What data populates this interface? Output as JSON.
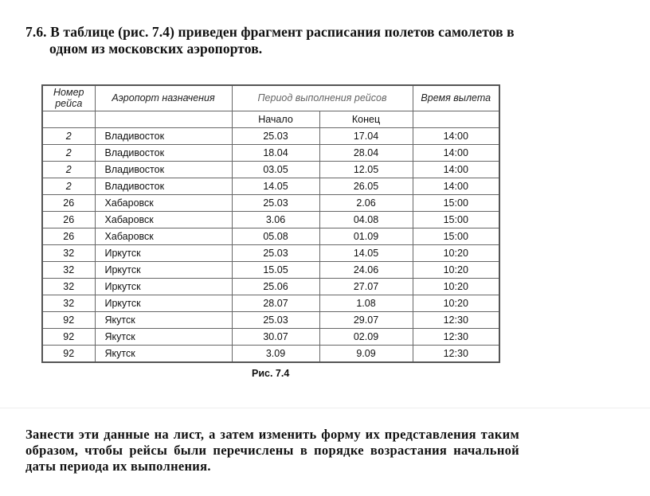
{
  "task": {
    "line1": "7.6. В таблице (рис. 7.4) приведен фрагмент расписания полетов самолетов в",
    "line2": "одном из московских аэропортов."
  },
  "table": {
    "headers": {
      "flight": "Номер рейса",
      "airport": "Аэропорт назначения",
      "period": "Период выполнения рейсов",
      "start": "Начало",
      "end": "Конец",
      "time": "Время вылета"
    },
    "rows": [
      [
        "2",
        "Владивосток",
        "25.03",
        "17.04",
        "14:00"
      ],
      [
        "2",
        "Владивосток",
        "18.04",
        "28.04",
        "14:00"
      ],
      [
        "2",
        "Владивосток",
        "03.05",
        "12.05",
        "14:00"
      ],
      [
        "2",
        "Владивосток",
        "14.05",
        "26.05",
        "14:00"
      ],
      [
        "26",
        "Хабаровск",
        "25.03",
        "2.06",
        "15:00"
      ],
      [
        "26",
        "Хабаровск",
        "3.06",
        "04.08",
        "15:00"
      ],
      [
        "26",
        "Хабаровск",
        "05.08",
        "01.09",
        "15:00"
      ],
      [
        "32",
        "Иркутск",
        "25.03",
        "14.05",
        "10:20"
      ],
      [
        "32",
        "Иркутск",
        "15.05",
        "24.06",
        "10:20"
      ],
      [
        "32",
        "Иркутск",
        "25.06",
        "27.07",
        "10:20"
      ],
      [
        "32",
        "Иркутск",
        "28.07",
        "1.08",
        "10:20"
      ],
      [
        "92",
        "Якутск",
        "25.03",
        "29.07",
        "12:30"
      ],
      [
        "92",
        "Якутск",
        "30.07",
        "02.09",
        "12:30"
      ],
      [
        "92",
        "Якутск",
        "3.09",
        "9.09",
        "12:30"
      ]
    ]
  },
  "caption": "Рис. 7.4",
  "bottom": "Занести эти данные на лист, а затем изменить форму их представления таким образом, чтобы рейсы были перечислены в порядке возрастания начальной даты периода их выполнения."
}
